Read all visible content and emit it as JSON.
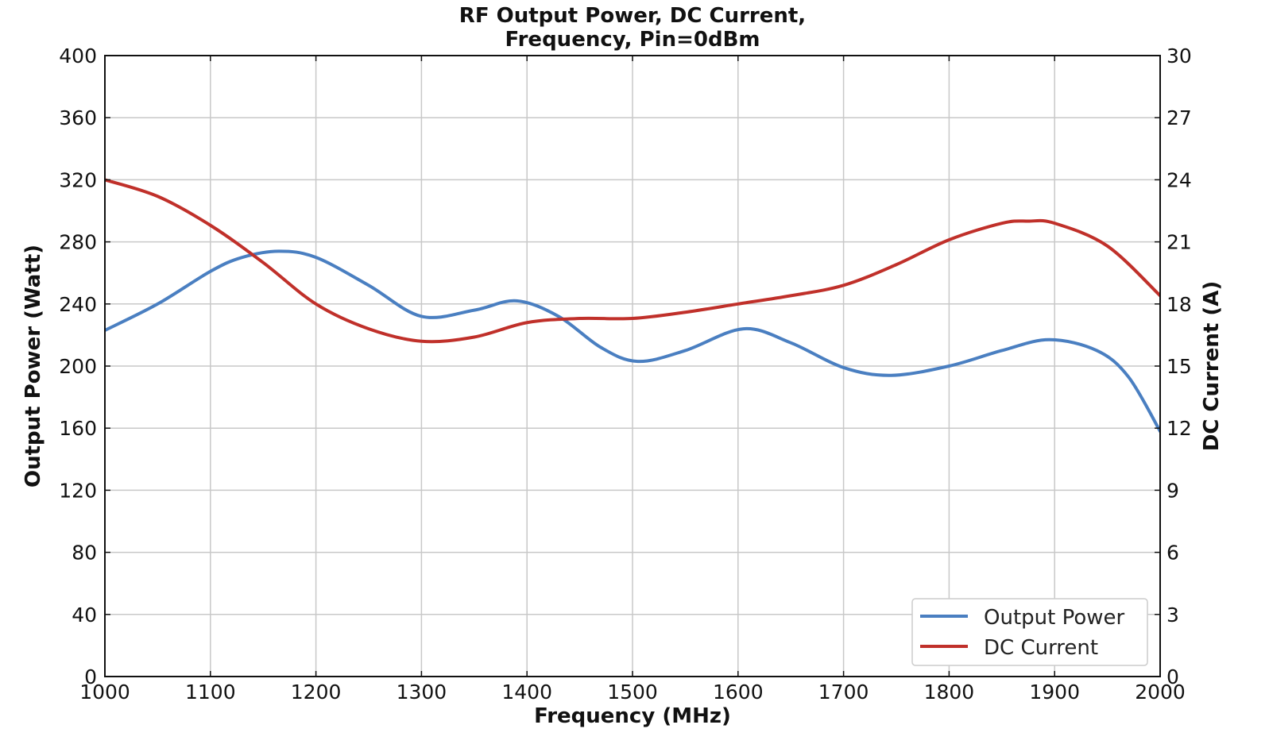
{
  "chart_data": {
    "type": "line",
    "title": [
      "RF Output Power, DC Current,",
      "Frequency, Pin=0dBm"
    ],
    "xlabel": "Frequency (MHz)",
    "ylabel": "Output Power (Watt)",
    "y2label": "DC Current (A)",
    "xlim": [
      1000,
      2000
    ],
    "ylim": [
      0,
      400
    ],
    "y2lim": [
      0,
      30
    ],
    "xticks": [
      1000,
      1100,
      1200,
      1300,
      1400,
      1500,
      1600,
      1700,
      1800,
      1900,
      2000
    ],
    "yticks": [
      0,
      40,
      80,
      120,
      160,
      200,
      240,
      280,
      320,
      360,
      400
    ],
    "y2ticks": [
      0,
      3,
      6,
      9,
      12,
      15,
      18,
      21,
      24,
      27,
      30
    ],
    "grid": true,
    "legend_position": "bottom-right",
    "series": [
      {
        "name": "Output Power",
        "axis": "left",
        "color": "#4a7fc1",
        "x": [
          1000,
          1050,
          1100,
          1130,
          1165,
          1200,
          1250,
          1300,
          1350,
          1390,
          1430,
          1470,
          1505,
          1550,
          1605,
          1650,
          1700,
          1745,
          1800,
          1850,
          1895,
          1940,
          1970,
          2000
        ],
        "y": [
          223,
          240,
          261,
          270,
          274,
          270,
          252,
          232,
          236,
          242,
          232,
          212,
          203,
          210,
          224,
          215,
          199,
          194,
          200,
          210,
          217,
          210,
          193,
          158
        ]
      },
      {
        "name": "DC Current",
        "axis": "right",
        "color": "#c0302a",
        "x": [
          1000,
          1050,
          1100,
          1150,
          1200,
          1250,
          1300,
          1350,
          1400,
          1450,
          1500,
          1550,
          1600,
          1650,
          1700,
          1750,
          1800,
          1850,
          1875,
          1900,
          1950,
          2000
        ],
        "y": [
          24.0,
          23.2,
          21.8,
          20.0,
          18.0,
          16.8,
          16.2,
          16.4,
          17.1,
          17.3,
          17.3,
          17.6,
          18.0,
          18.4,
          18.9,
          19.9,
          21.1,
          21.9,
          22.0,
          21.9,
          20.8,
          18.4
        ]
      }
    ]
  }
}
